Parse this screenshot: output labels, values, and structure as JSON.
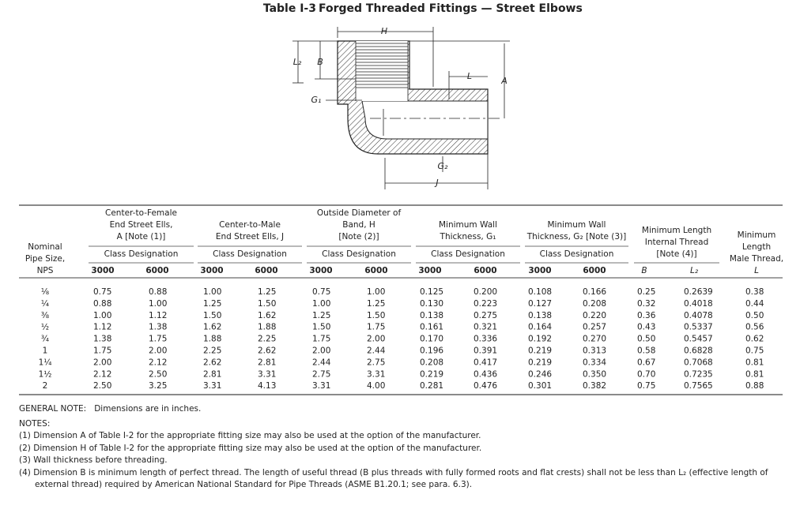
{
  "table_number": "Table I-3",
  "title": "Forged Threaded Fittings — Street Elbows",
  "diagram": {
    "labels": {
      "H": "H",
      "L2": "L₂",
      "B": "B",
      "G1": "G₁",
      "L": "L",
      "A": "A",
      "G2": "G₂",
      "J": "J"
    }
  },
  "table": {
    "header": {
      "nps": [
        "Nominal",
        "Pipe Size,",
        "NPS"
      ],
      "groups": [
        {
          "title": [
            "Center-to-Female",
            "End Street Ells,",
            "A [Note (1)]"
          ],
          "sub": "Class Designation",
          "cols": [
            "3000",
            "6000"
          ]
        },
        {
          "title": [
            "Center-to-Male",
            "End Street Ells, J"
          ],
          "sub": "Class Designation",
          "cols": [
            "3000",
            "6000"
          ]
        },
        {
          "title": [
            "Outside Diameter of",
            "Band, H",
            "[Note (2)]"
          ],
          "sub": "Class Designation",
          "cols": [
            "3000",
            "6000"
          ]
        },
        {
          "title": [
            "Minimum Wall",
            "Thickness, G₁"
          ],
          "sub": "Class Designation",
          "cols": [
            "3000",
            "6000"
          ]
        },
        {
          "title": [
            "Minimum Wall",
            "Thickness, G₂ [Note (3)]"
          ],
          "sub": "Class Designation",
          "cols": [
            "3000",
            "6000"
          ]
        },
        {
          "title": [
            "Minimum Length",
            "Internal Thread",
            "[Note (4)]"
          ],
          "cols": [
            "B",
            "L₂"
          ]
        }
      ],
      "male": [
        "Minimum",
        "Length",
        "Male Thread,",
        "L"
      ]
    },
    "rows": [
      [
        "⅛",
        "0.75",
        "0.88",
        "1.00",
        "1.25",
        "0.75",
        "1.00",
        "0.125",
        "0.200",
        "0.108",
        "0.166",
        "0.25",
        "0.2639",
        "0.38"
      ],
      [
        "¼",
        "0.88",
        "1.00",
        "1.25",
        "1.50",
        "1.00",
        "1.25",
        "0.130",
        "0.223",
        "0.127",
        "0.208",
        "0.32",
        "0.4018",
        "0.44"
      ],
      [
        "⅜",
        "1.00",
        "1.12",
        "1.50",
        "1.62",
        "1.25",
        "1.50",
        "0.138",
        "0.275",
        "0.138",
        "0.220",
        "0.36",
        "0.4078",
        "0.50"
      ],
      [
        "½",
        "1.12",
        "1.38",
        "1.62",
        "1.88",
        "1.50",
        "1.75",
        "0.161",
        "0.321",
        "0.164",
        "0.257",
        "0.43",
        "0.5337",
        "0.56"
      ],
      [
        "¾",
        "1.38",
        "1.75",
        "1.88",
        "2.25",
        "1.75",
        "2.00",
        "0.170",
        "0.336",
        "0.192",
        "0.270",
        "0.50",
        "0.5457",
        "0.62"
      ],
      [
        "1",
        "1.75",
        "2.00",
        "2.25",
        "2.62",
        "2.00",
        "2.44",
        "0.196",
        "0.391",
        "0.219",
        "0.313",
        "0.58",
        "0.6828",
        "0.75"
      ],
      [
        "1¼",
        "2.00",
        "2.12",
        "2.62",
        "2.81",
        "2.44",
        "2.75",
        "0.208",
        "0.417",
        "0.219",
        "0.334",
        "0.67",
        "0.7068",
        "0.81"
      ],
      [
        "1½",
        "2.12",
        "2.50",
        "2.81",
        "3.31",
        "2.75",
        "3.31",
        "0.219",
        "0.436",
        "0.246",
        "0.350",
        "0.70",
        "0.7235",
        "0.81"
      ],
      [
        "2",
        "2.50",
        "3.25",
        "3.31",
        "4.13",
        "3.31",
        "4.00",
        "0.281",
        "0.476",
        "0.301",
        "0.382",
        "0.75",
        "0.7565",
        "0.88"
      ]
    ]
  },
  "general_note": {
    "label": "GENERAL NOTE:",
    "text": "Dimensions are in inches."
  },
  "notes_title": "NOTES:",
  "notes": [
    "(1) Dimension A of Table I-2 for the appropriate fitting size may also be used at the option of the manufacturer.",
    "(2) Dimension H of Table I-2 for the appropriate fitting size may also be used at the option of the manufacturer.",
    "(3) Wall thickness before threading.",
    "(4) Dimension B is minimum length of perfect thread. The length of useful thread (B plus threads with fully formed roots and flat crests) shall not be less than L₂ (effective length of external thread) required by American National Standard for Pipe Threads (ASME B1.20.1; see para. 6.3)."
  ]
}
